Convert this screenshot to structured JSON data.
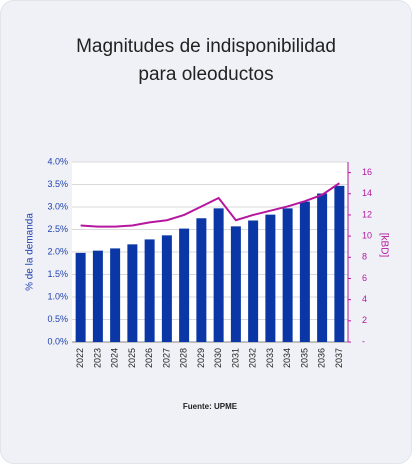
{
  "chart_data": {
    "type": "bar",
    "title": "Magnitudes de indisponibilidad para oleoductos",
    "ylabel": "% de la demanda",
    "y2label": "[kBD]",
    "source": "Fuente: UPME",
    "categories": [
      "2022",
      "2023",
      "2024",
      "2025",
      "2026",
      "2027",
      "2028",
      "2029",
      "2030",
      "2031",
      "2032",
      "2033",
      "2034",
      "2035",
      "2036",
      "2037"
    ],
    "series": [
      {
        "type": "bar",
        "color": "#0b37a6",
        "values": [
          1.98,
          2.03,
          2.08,
          2.17,
          2.28,
          2.37,
          2.52,
          2.75,
          2.97,
          2.57,
          2.7,
          2.83,
          2.97,
          3.12,
          3.3,
          3.47
        ]
      },
      {
        "type": "line",
        "axis": "y2",
        "color": "#b5179e",
        "values": [
          11.0,
          10.9,
          10.9,
          11.0,
          11.3,
          11.5,
          12.0,
          12.8,
          13.6,
          11.5,
          12.0,
          12.4,
          12.8,
          13.3,
          13.9,
          15.0
        ]
      }
    ],
    "ylim": [
      0,
      4
    ],
    "yticks": [
      {
        "value": 0,
        "label": "0.0%"
      },
      {
        "value": 0.5,
        "label": "0.5%"
      },
      {
        "value": 1,
        "label": "1.0%"
      },
      {
        "value": 1.5,
        "label": "1.5%"
      },
      {
        "value": 2,
        "label": "2.0%"
      },
      {
        "value": 2.5,
        "label": "2.5%"
      },
      {
        "value": 3,
        "label": "3.0%"
      },
      {
        "value": 3.5,
        "label": "3.5%"
      },
      {
        "value": 4,
        "label": "4.0%"
      }
    ],
    "y2lim": [
      0,
      17
    ],
    "y2ticks": [
      {
        "value": 0,
        "label": "-"
      },
      2,
      4,
      6,
      8,
      10,
      12,
      14,
      16
    ],
    "grid": true
  }
}
